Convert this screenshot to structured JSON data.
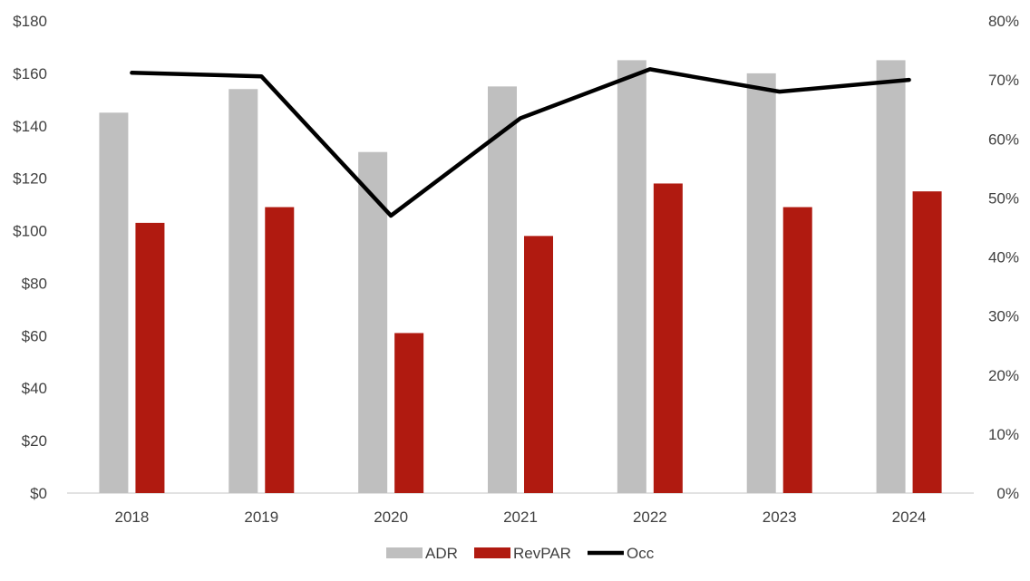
{
  "chart_data": {
    "type": "bar",
    "categories": [
      "2018",
      "2019",
      "2020",
      "2021",
      "2022",
      "2023",
      "2024"
    ],
    "series": [
      {
        "name": "ADR",
        "type": "bar",
        "axis": "left",
        "color": "#bfbfbf",
        "values": [
          145,
          154,
          130,
          155,
          165,
          160,
          165
        ]
      },
      {
        "name": "RevPAR",
        "type": "bar",
        "axis": "left",
        "color": "#b01a10",
        "values": [
          103,
          109,
          61,
          98,
          118,
          109,
          115
        ]
      },
      {
        "name": "Occ",
        "type": "line",
        "axis": "right",
        "color": "#000000",
        "values": [
          0.712,
          0.706,
          0.47,
          0.635,
          0.718,
          0.68,
          0.7
        ]
      }
    ],
    "y_left": {
      "min": 0,
      "max": 180,
      "step": 20,
      "format": "$"
    },
    "y_right": {
      "min": 0,
      "max": 0.8,
      "step": 0.1,
      "format": "%"
    },
    "grid": false,
    "legend": "bottom-center"
  }
}
